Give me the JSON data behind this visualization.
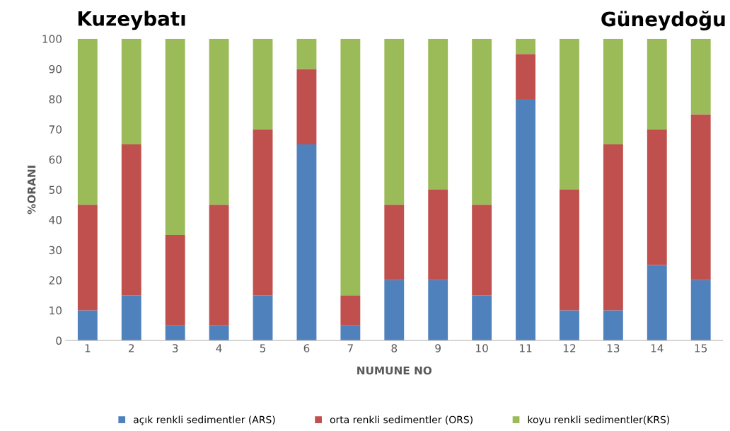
{
  "chart_data": {
    "type": "bar",
    "stacked": true,
    "xlabel": "NUMUNE NO",
    "ylabel": "%ORANI",
    "annotations": [
      "Kuzeybatı",
      "Güneydoğu"
    ],
    "categories": [
      "1",
      "2",
      "3",
      "4",
      "5",
      "6",
      "7",
      "8",
      "9",
      "10",
      "11",
      "12",
      "13",
      "14",
      "15"
    ],
    "series": [
      {
        "name": "açık renkli sedimentler (ARS)",
        "color": "#4f81bd",
        "values": [
          10,
          15,
          5,
          5,
          15,
          65,
          5,
          20,
          20,
          15,
          80,
          10,
          10,
          25,
          20
        ]
      },
      {
        "name": "orta renkli sedimentler (ORS)",
        "color": "#c0504d",
        "values": [
          35,
          50,
          30,
          40,
          55,
          25,
          10,
          25,
          30,
          30,
          15,
          40,
          55,
          45,
          55
        ]
      },
      {
        "name": "koyu renkli sedimentler(KRS)",
        "color": "#9bbb59",
        "values": [
          55,
          35,
          65,
          55,
          30,
          10,
          85,
          55,
          50,
          55,
          5,
          50,
          35,
          30,
          25
        ]
      }
    ],
    "ylim": [
      0,
      100
    ],
    "yticks": [
      0,
      10,
      20,
      30,
      40,
      50,
      60,
      70,
      80,
      90,
      100
    ],
    "grid": false,
    "legend": "bottom"
  }
}
